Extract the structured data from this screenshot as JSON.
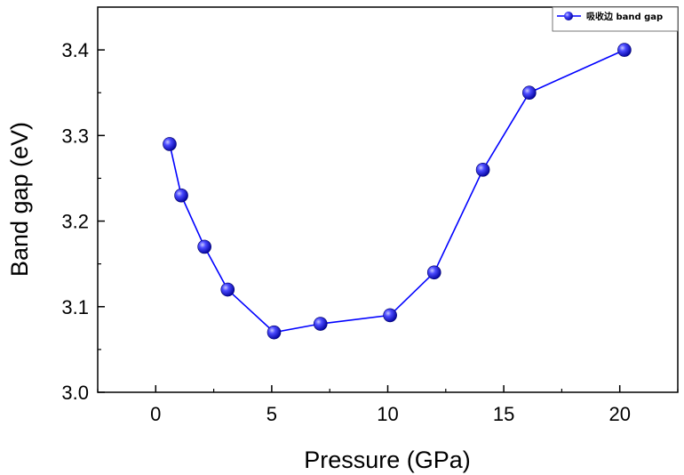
{
  "chart_data": {
    "type": "line",
    "xlabel": "Pressure (GPa)",
    "ylabel": "Band gap (eV)",
    "xlim": [
      -2.5,
      22.5
    ],
    "ylim": [
      3.0,
      3.45
    ],
    "xticks": [
      0,
      5,
      10,
      15,
      20
    ],
    "yticks": [
      3.0,
      3.1,
      3.2,
      3.3,
      3.4
    ],
    "xtick_labels": [
      "0",
      "5",
      "10",
      "15",
      "20"
    ],
    "ytick_labels": [
      "3.0",
      "3.1",
      "3.2",
      "3.3",
      "3.4"
    ],
    "grid": false,
    "legend_position": "top-right",
    "series": [
      {
        "name": "吸收边 band gap",
        "color": "#0000ff",
        "marker": "sphere",
        "x": [
          0.6,
          1.1,
          2.1,
          3.1,
          5.1,
          7.1,
          10.1,
          12.0,
          14.1,
          16.1,
          20.2
        ],
        "y": [
          3.29,
          3.23,
          3.17,
          3.12,
          3.07,
          3.08,
          3.09,
          3.14,
          3.26,
          3.35,
          3.4
        ]
      }
    ]
  }
}
